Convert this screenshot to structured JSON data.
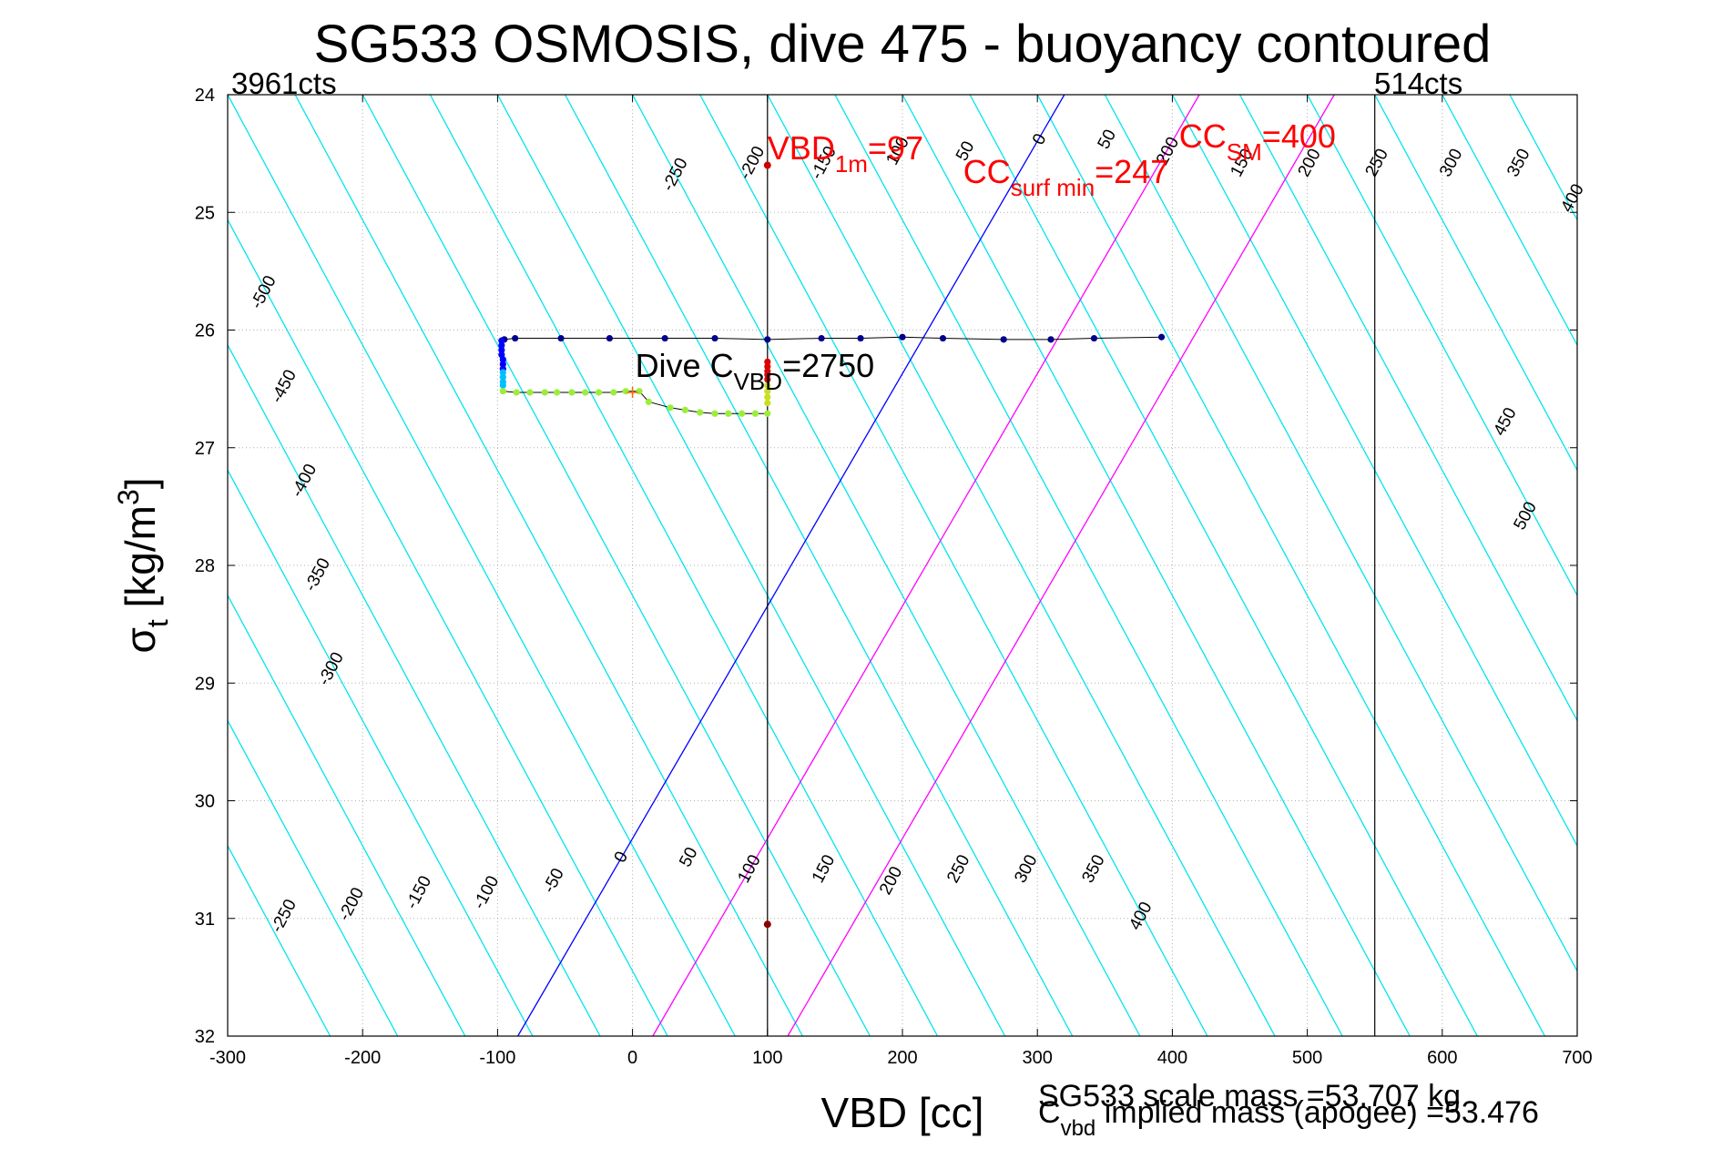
{
  "chart_data": {
    "type": "scatter",
    "title": "SG533 OSMOSIS, dive 475 - buoyancy contoured",
    "xlabel": "VBD [cc]",
    "ylabel": {
      "base": "σ",
      "sub": "t",
      "unit": " [kg/m",
      "sup": "3",
      "close": "]"
    },
    "xlim": [
      -300,
      700
    ],
    "ylim": [
      24,
      32
    ],
    "y_reversed": true,
    "grid": true,
    "xticks": [
      -300,
      -200,
      -100,
      0,
      100,
      200,
      300,
      400,
      500,
      600,
      700
    ],
    "yticks": [
      24,
      25,
      26,
      27,
      28,
      29,
      30,
      31,
      32
    ],
    "count_labels": {
      "left": "3961cts",
      "right": "514cts"
    },
    "vertical_lines": [
      {
        "x": 100,
        "color": "#000000"
      },
      {
        "x": 550,
        "color": "#000000"
      }
    ],
    "contour_lines": {
      "color": "#00e5ee",
      "levels": [
        -500,
        -450,
        -400,
        -350,
        -300,
        -250,
        -200,
        -150,
        -100,
        -50,
        0,
        50,
        100,
        150,
        200,
        250,
        300,
        350,
        400,
        450,
        500
      ],
      "slope_cc_per_kgm3": 47,
      "label_at_25_1_to_26": [
        {
          "text": "-500",
          "x": -270,
          "y": 25.7
        },
        {
          "text": "-450",
          "x": -255,
          "y": 26.5
        },
        {
          "text": "-400",
          "x": -240,
          "y": 27.3
        },
        {
          "text": "-350",
          "x": -230,
          "y": 28.1
        },
        {
          "text": "-300",
          "x": -220,
          "y": 28.9
        },
        {
          "text": "-250",
          "x": -255,
          "y": 31.0
        },
        {
          "text": "-200",
          "x": -205,
          "y": 30.9
        },
        {
          "text": "-150",
          "x": -155,
          "y": 30.8
        },
        {
          "text": "-100",
          "x": -105,
          "y": 30.8
        },
        {
          "text": "-50",
          "x": -55,
          "y": 30.7
        },
        {
          "text": "0",
          "x": -5,
          "y": 30.5
        },
        {
          "text": "50",
          "x": 45,
          "y": 30.5
        },
        {
          "text": "100",
          "x": 90,
          "y": 30.6
        },
        {
          "text": "150",
          "x": 145,
          "y": 30.6
        },
        {
          "text": "200",
          "x": 195,
          "y": 30.7
        },
        {
          "text": "250",
          "x": 245,
          "y": 30.6
        },
        {
          "text": "300",
          "x": 295,
          "y": 30.6
        },
        {
          "text": "350",
          "x": 345,
          "y": 30.6
        },
        {
          "text": "400",
          "x": 380,
          "y": 31.0
        },
        {
          "text": "-250",
          "x": 35,
          "y": 24.7
        },
        {
          "text": "-200",
          "x": 92,
          "y": 24.6
        },
        {
          "text": "-150",
          "x": 145,
          "y": 24.6
        },
        {
          "text": "100",
          "x": 200,
          "y": 24.5
        },
        {
          "text": "50",
          "x": 250,
          "y": 24.5
        },
        {
          "text": "0",
          "x": 305,
          "y": 24.4
        },
        {
          "text": "50",
          "x": 355,
          "y": 24.4
        },
        {
          "text": "200",
          "x": 400,
          "y": 24.5
        },
        {
          "text": "150",
          "x": 455,
          "y": 24.6
        },
        {
          "text": "200",
          "x": 505,
          "y": 24.6
        },
        {
          "text": "250",
          "x": 555,
          "y": 24.6
        },
        {
          "text": "300",
          "x": 610,
          "y": 24.6
        },
        {
          "text": "350",
          "x": 660,
          "y": 24.6
        },
        {
          "text": "400",
          "x": 700,
          "y": 24.9
        },
        {
          "text": "450",
          "x": 650,
          "y": 26.8
        },
        {
          "text": "500",
          "x": 665,
          "y": 27.6
        }
      ]
    },
    "reference_lines": [
      {
        "name": "",
        "x_at_ymin": -85,
        "x_at_ymax": 320,
        "color": "#0000ff"
      },
      {
        "name": "",
        "x_at_ymin": 15,
        "x_at_ymax": 420,
        "color": "#ff00ff"
      },
      {
        "name": "",
        "x_at_ymin": 115,
        "x_at_ymax": 520,
        "color": "#ff00ff"
      }
    ],
    "series": [
      {
        "name": "",
        "color": "#00008b",
        "x": [
          -95,
          -87,
          -53,
          -17,
          24,
          61,
          100,
          140,
          169,
          200,
          230,
          275,
          310,
          342,
          392
        ],
        "y": [
          26.08,
          26.07,
          26.07,
          26.07,
          26.07,
          26.07,
          26.08,
          26.07,
          26.07,
          26.06,
          26.07,
          26.08,
          26.08,
          26.07,
          26.06
        ]
      },
      {
        "name": "",
        "color": "#0000ff",
        "x": [
          -97,
          -97,
          -97,
          -97,
          -96,
          -96,
          -96
        ],
        "y": [
          26.09,
          26.13,
          26.17,
          26.21,
          26.25,
          26.29,
          26.33
        ]
      },
      {
        "name": "",
        "color": "#00bfff",
        "x": [
          -96,
          -96,
          -96,
          -96
        ],
        "y": [
          26.36,
          26.4,
          26.44,
          26.47
        ]
      },
      {
        "name": "",
        "color": "#9aee3a",
        "x": [
          -96,
          -86,
          -76,
          -65,
          -56,
          -45,
          -35,
          -25,
          -14,
          -5,
          5,
          12,
          28,
          39,
          50,
          61,
          71,
          81,
          91,
          100
        ],
        "y": [
          26.52,
          26.53,
          26.53,
          26.53,
          26.53,
          26.53,
          26.53,
          26.53,
          26.53,
          26.52,
          26.52,
          26.61,
          26.66,
          26.68,
          26.7,
          26.71,
          26.71,
          26.71,
          26.71,
          26.71
        ]
      },
      {
        "name": "",
        "color": "#c8e020",
        "x": [
          100,
          100,
          100,
          100
        ],
        "y": [
          26.62,
          26.57,
          26.52,
          26.47
        ]
      },
      {
        "name": "",
        "color": "#dd0000",
        "x": [
          100,
          100,
          100,
          100,
          100
        ],
        "y": [
          26.42,
          26.38,
          26.35,
          26.31,
          26.27
        ]
      }
    ],
    "markers": [
      {
        "x": 0,
        "y": 26.53,
        "color": "#ff6600",
        "shape": "plus"
      },
      {
        "x": 100,
        "y": 24.6,
        "color": "#cc0000",
        "shape": "dot"
      },
      {
        "x": 100,
        "y": 31.05,
        "color": "#8b0000",
        "shape": "dot"
      }
    ],
    "annotations": [
      {
        "text": "VBD",
        "sub": "1m",
        "rest": "=97",
        "x": 100,
        "y": 24.55,
        "color": "#ff0000"
      },
      {
        "text": "CC",
        "sub": "surf min",
        "rest": "=247",
        "x": 245,
        "y": 24.75,
        "color": "#ff0000"
      },
      {
        "text": "CC",
        "sub": "SM",
        "rest": "=400",
        "x": 405,
        "y": 24.45,
        "color": "#ff0000"
      },
      {
        "text": "Dive C",
        "sub": "VBD",
        "rest": "=2750",
        "x": 2,
        "y": 26.4,
        "color": "#000000"
      }
    ],
    "footer": {
      "line1": "SG533 scale mass =53.707 kg",
      "line2": {
        "text": "C",
        "sub": "vbd",
        "rest": " implied mass (apogee) =53.476"
      }
    }
  }
}
